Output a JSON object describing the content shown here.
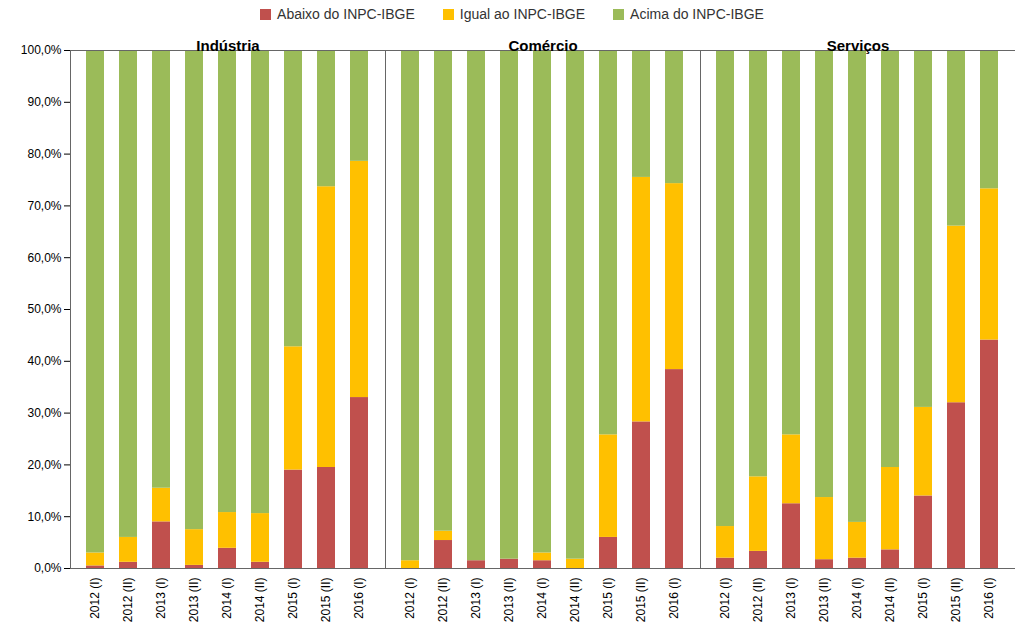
{
  "chart_data": [
    {
      "type": "bar",
      "title": "Indústria",
      "stacked": true,
      "legend": "top",
      "tick_labels": true,
      "categories": [
        "2012 (I)",
        "2012 (II)",
        "2013 (I)",
        "2013 (II)",
        "2014 (I)",
        "2014 (II)",
        "2015 (I)",
        "2015 (II)",
        "2016 (I)"
      ],
      "series": [
        {
          "name": "Abaixo do INPC-IBGE",
          "color": "#c0504d",
          "values": [
            0.5,
            1.2,
            9.0,
            0.6,
            3.9,
            1.2,
            19.0,
            19.5,
            33.0
          ]
        },
        {
          "name": "Igual ao INPC-IBGE",
          "color": "#ffc000",
          "values": [
            2.5,
            4.8,
            6.5,
            6.9,
            6.9,
            9.4,
            23.8,
            54.2,
            45.6
          ]
        },
        {
          "name": "Acima do INPC-IBGE",
          "color": "#9bbb59",
          "values": [
            97.0,
            94.0,
            84.5,
            92.5,
            89.2,
            89.4,
            57.2,
            26.3,
            21.4
          ]
        }
      ],
      "ylim": [
        0,
        100
      ],
      "yticks": [
        {
          "value": 0,
          "label": "0,0%"
        },
        {
          "value": 10,
          "label": "10,0%"
        },
        {
          "value": 20,
          "label": "20,0%"
        },
        {
          "value": 30,
          "label": "30,0%"
        },
        {
          "value": 40,
          "label": "40,0%"
        },
        {
          "value": 50,
          "label": "50,0%"
        },
        {
          "value": 60,
          "label": "60,0%"
        },
        {
          "value": 70,
          "label": "70,0%"
        },
        {
          "value": 80,
          "label": "80,0%"
        },
        {
          "value": 90,
          "label": "90,0%"
        },
        {
          "value": 100,
          "label": "100,0%"
        }
      ]
    },
    {
      "type": "bar",
      "title": "Comércio",
      "stacked": true,
      "tick_labels": "x",
      "categories": [
        "2012 (I)",
        "2012 (II)",
        "2013 (I)",
        "2013 (II)",
        "2014 (I)",
        "2014 (II)",
        "2015 (I)",
        "2015 (II)",
        "2016 (I)"
      ],
      "series": [
        {
          "name": "Abaixo do INPC-IBGE",
          "color": "#c0504d",
          "values": [
            0.0,
            5.4,
            1.5,
            1.8,
            1.5,
            0.0,
            6.0,
            28.3,
            38.4
          ]
        },
        {
          "name": "Igual ao INPC-IBGE",
          "color": "#ffc000",
          "values": [
            1.5,
            1.8,
            0.0,
            0.0,
            1.5,
            1.8,
            19.8,
            47.2,
            35.9
          ]
        },
        {
          "name": "Acima do INPC-IBGE",
          "color": "#9bbb59",
          "values": [
            98.5,
            92.8,
            98.5,
            98.2,
            97.0,
            98.2,
            74.2,
            24.5,
            25.7
          ]
        }
      ],
      "ylim": [
        0,
        100
      ]
    },
    {
      "type": "bar",
      "title": "Serviços",
      "stacked": true,
      "tick_labels": "x",
      "categories": [
        "2012 (I)",
        "2012 (II)",
        "2013 (I)",
        "2013 (II)",
        "2014 (I)",
        "2014 (II)",
        "2015 (I)",
        "2015 (II)",
        "2016 (I)"
      ],
      "series": [
        {
          "name": "Abaixo do INPC-IBGE",
          "color": "#c0504d",
          "values": [
            2.0,
            3.3,
            12.5,
            1.7,
            2.0,
            3.6,
            14.0,
            32.0,
            44.1
          ]
        },
        {
          "name": "Igual ao INPC-IBGE",
          "color": "#ffc000",
          "values": [
            6.1,
            14.4,
            13.3,
            12.0,
            6.9,
            15.9,
            17.1,
            34.1,
            29.2
          ]
        },
        {
          "name": "Acima do INPC-IBGE",
          "color": "#9bbb59",
          "values": [
            91.9,
            82.3,
            74.2,
            86.3,
            91.1,
            80.5,
            68.9,
            33.9,
            26.7
          ]
        }
      ],
      "ylim": [
        0,
        100
      ]
    }
  ]
}
